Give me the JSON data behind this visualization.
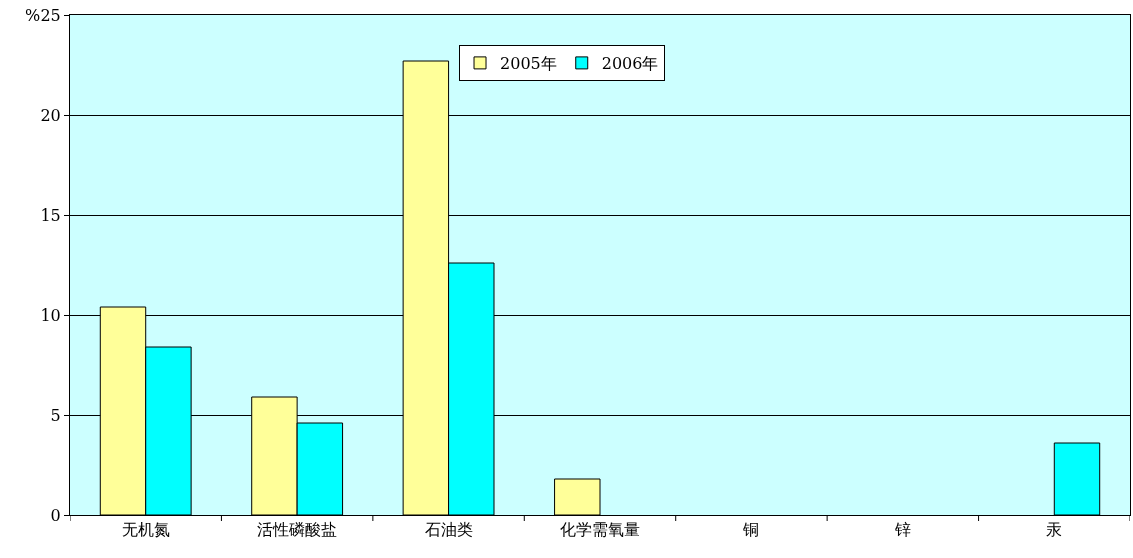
{
  "chart_data": {
    "type": "bar",
    "ylabel": "%",
    "categories": [
      "无机氮",
      "活性磷酸盐",
      "石油类",
      "化学需氧量",
      "铜",
      "锌",
      "汞"
    ],
    "series": [
      {
        "name": "2005年",
        "color": "#ffff99",
        "values": [
          10.4,
          5.9,
          22.7,
          1.8,
          0,
          0,
          0
        ]
      },
      {
        "name": "2006年",
        "color": "#00ffff",
        "values": [
          8.4,
          4.6,
          12.6,
          0,
          0,
          0,
          3.6
        ]
      }
    ],
    "ylim": [
      0,
      25
    ],
    "yticks": [
      0,
      5,
      10,
      15,
      20,
      25
    ],
    "grid": "y",
    "legend": "top"
  }
}
